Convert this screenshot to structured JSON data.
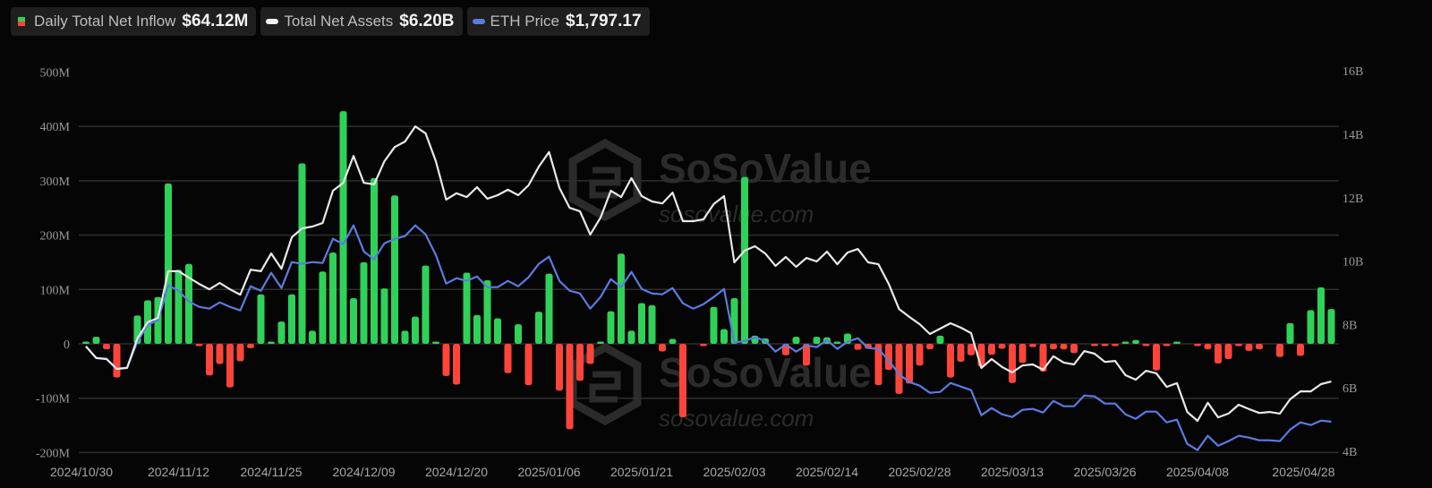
{
  "legend": [
    {
      "label": "Daily Total Net Inflow",
      "value": "$64.12M",
      "icon": "green-red-square"
    },
    {
      "label": "Total Net Assets",
      "value": "$6.20B",
      "icon": "white-line"
    },
    {
      "label": "ETH Price",
      "value": "$1,797.17",
      "icon": "blue-line"
    }
  ],
  "watermark": {
    "brand": "SoSoValue",
    "url": "sosovalue.com"
  },
  "colors": {
    "inflow_positive": "#30d158",
    "inflow_negative": "#ff453a",
    "net_assets": "#e9e9e9",
    "eth_price": "#5b7be2",
    "background": "#050505",
    "grid": "#333333"
  },
  "chart_data": {
    "type": "bar+line",
    "left_axis": {
      "ticks": [
        "500M",
        "400M",
        "300M",
        "200M",
        "100M",
        "0",
        "-100M",
        "-200M"
      ],
      "range_millions": [
        -200,
        500
      ]
    },
    "right_axis": {
      "ticks": [
        "16B",
        "14B",
        "12B",
        "10B",
        "8B",
        "6B",
        "4B"
      ],
      "range_billions": [
        4,
        16
      ]
    },
    "x_ticks": [
      "2024/10/30",
      "2024/11/12",
      "2024/11/25",
      "2024/12/09",
      "2024/12/20",
      "2025/01/06",
      "2025/01/21",
      "2025/02/03",
      "2025/02/14",
      "2025/02/28",
      "2025/03/13",
      "2025/03/26",
      "2025/04/08",
      "2025/04/28"
    ],
    "grid": true,
    "legend_position": "top-left",
    "x": [
      "2024/10/30",
      "2024/10/31",
      "2024/11/01",
      "2024/11/04",
      "2024/11/05",
      "2024/11/06",
      "2024/11/07",
      "2024/11/08",
      "2024/11/11",
      "2024/11/12",
      "2024/11/13",
      "2024/11/14",
      "2024/11/15",
      "2024/11/18",
      "2024/11/19",
      "2024/11/20",
      "2024/11/21",
      "2024/11/22",
      "2024/11/25",
      "2024/11/26",
      "2024/11/27",
      "2024/11/29",
      "2024/12/02",
      "2024/12/03",
      "2024/12/04",
      "2024/12/05",
      "2024/12/06",
      "2024/12/09",
      "2024/12/10",
      "2024/12/11",
      "2024/12/12",
      "2024/12/13",
      "2024/12/16",
      "2024/12/17",
      "2024/12/18",
      "2024/12/19",
      "2024/12/20",
      "2024/12/23",
      "2024/12/24",
      "2024/12/26",
      "2024/12/27",
      "2024/12/30",
      "2024/12/31",
      "2025/01/02",
      "2025/01/03",
      "2025/01/06",
      "2025/01/07",
      "2025/01/08",
      "2025/01/10",
      "2025/01/13",
      "2025/01/14",
      "2025/01/15",
      "2025/01/16",
      "2025/01/17",
      "2025/01/21",
      "2025/01/22",
      "2025/01/23",
      "2025/01/24",
      "2025/01/27",
      "2025/01/28",
      "2025/01/29",
      "2025/01/30",
      "2025/01/31",
      "2025/02/03",
      "2025/02/04",
      "2025/02/05",
      "2025/02/06",
      "2025/02/07",
      "2025/02/10",
      "2025/02/11",
      "2025/02/12",
      "2025/02/13",
      "2025/02/14",
      "2025/02/18",
      "2025/02/19",
      "2025/02/20",
      "2025/02/21",
      "2025/02/24",
      "2025/02/25",
      "2025/02/26",
      "2025/02/27",
      "2025/02/28",
      "2025/03/03",
      "2025/03/04",
      "2025/03/05",
      "2025/03/06",
      "2025/03/07",
      "2025/03/10",
      "2025/03/11",
      "2025/03/12",
      "2025/03/13",
      "2025/03/14",
      "2025/03/17",
      "2025/03/18",
      "2025/03/19",
      "2025/03/20",
      "2025/03/21",
      "2025/03/24",
      "2025/03/25",
      "2025/03/26",
      "2025/03/27",
      "2025/03/28",
      "2025/03/31",
      "2025/04/01",
      "2025/04/02",
      "2025/04/03",
      "2025/04/04",
      "2025/04/07",
      "2025/04/08",
      "2025/04/09",
      "2025/04/10",
      "2025/04/11",
      "2025/04/14",
      "2025/04/15",
      "2025/04/16",
      "2025/04/17",
      "2025/04/21",
      "2025/04/22",
      "2025/04/23",
      "2025/04/24",
      "2025/04/25",
      "2025/04/28"
    ],
    "series": [
      {
        "name": "Daily Total Net Inflow",
        "type": "bar",
        "unit": "M USD",
        "axis": "left",
        "values": [
          4,
          13,
          -10,
          -62,
          0,
          52,
          80,
          86,
          295,
          136,
          147,
          -2,
          -58,
          -37,
          -80,
          -32,
          -8,
          91,
          2,
          41,
          91,
          332,
          24,
          133,
          168,
          428,
          84,
          150,
          305,
          102,
          273,
          24,
          50,
          144,
          1,
          -59,
          -75,
          131,
          53,
          117,
          47,
          -54,
          36,
          -76,
          59,
          129,
          -86,
          -157,
          -68,
          -37,
          1,
          60,
          166,
          24,
          75,
          71,
          -14,
          9,
          -135,
          0,
          -3,
          68,
          27,
          84,
          307,
          15,
          10,
          0,
          -21,
          13,
          -40,
          13,
          12,
          4,
          19,
          -11,
          -9,
          -76,
          -48,
          -92,
          -73,
          -40,
          -10,
          15,
          -62,
          -33,
          -21,
          -42,
          -20,
          -9,
          -72,
          -35,
          -6,
          -51,
          -10,
          -10,
          -17,
          0,
          -2,
          -4,
          -3,
          4,
          7,
          -2,
          -49,
          -3,
          2,
          0,
          -3,
          -10,
          -36,
          -28,
          -4,
          -13,
          -10,
          0,
          -24,
          38,
          -22,
          62,
          104,
          64.12
        ]
      },
      {
        "name": "Total Net Assets",
        "type": "line",
        "unit": "B USD",
        "axis": "right",
        "values": [
          7.31,
          6.94,
          6.91,
          6.6,
          6.63,
          7.56,
          8.07,
          8.21,
          9.68,
          9.68,
          9.48,
          9.28,
          9.11,
          9.31,
          9.11,
          8.94,
          9.73,
          9.68,
          10.24,
          9.76,
          10.75,
          11.03,
          11.09,
          11.2,
          12.22,
          12.47,
          13.32,
          12.47,
          12.42,
          13.15,
          13.6,
          13.77,
          14.25,
          14.03,
          13.15,
          11.94,
          12.14,
          12.02,
          12.33,
          11.97,
          12.08,
          12.25,
          12.08,
          12.39,
          12.98,
          13.44,
          12.31,
          11.68,
          11.57,
          10.84,
          11.37,
          12.22,
          12.02,
          12.62,
          12.05,
          11.88,
          11.82,
          12.16,
          11.26,
          11.26,
          11.32,
          11.8,
          12.05,
          9.96,
          10.33,
          10.47,
          10.24,
          9.85,
          10.13,
          9.82,
          10.1,
          9.99,
          10.3,
          9.9,
          10.27,
          10.38,
          9.96,
          9.9,
          9.28,
          8.49,
          8.24,
          8.01,
          7.7,
          7.87,
          8.04,
          7.9,
          7.73,
          6.63,
          6.91,
          6.66,
          6.49,
          6.71,
          6.74,
          6.57,
          7.0,
          6.8,
          6.74,
          7.16,
          7.08,
          6.82,
          6.85,
          6.4,
          6.26,
          6.54,
          6.46,
          6.03,
          6.15,
          5.24,
          4.96,
          5.53,
          5.07,
          5.19,
          5.47,
          5.33,
          5.21,
          5.24,
          5.19,
          5.64,
          5.89,
          5.89,
          6.12,
          6.2
        ]
      },
      {
        "name": "ETH Price",
        "type": "line",
        "unit": "USD",
        "axis": "hidden",
        "values": [
          2640,
          2510,
          2500,
          2390,
          2400,
          2690,
          2880,
          2930,
          3320,
          3260,
          3140,
          3080,
          3060,
          3130,
          3080,
          3040,
          3310,
          3260,
          3460,
          3290,
          3580,
          3560,
          3580,
          3570,
          3840,
          3780,
          3990,
          3700,
          3610,
          3790,
          3840,
          3870,
          3990,
          3890,
          3660,
          3340,
          3400,
          3370,
          3420,
          3300,
          3300,
          3370,
          3310,
          3410,
          3560,
          3640,
          3370,
          3260,
          3230,
          3060,
          3190,
          3390,
          3300,
          3470,
          3280,
          3230,
          3220,
          3290,
          3120,
          3060,
          3110,
          3190,
          3280,
          2680,
          2700,
          2740,
          2700,
          2580,
          2660,
          2580,
          2650,
          2630,
          2710,
          2610,
          2690,
          2730,
          2620,
          2610,
          2480,
          2330,
          2240,
          2200,
          2120,
          2130,
          2230,
          2190,
          2150,
          1870,
          1950,
          1880,
          1850,
          1930,
          1940,
          1900,
          2030,
          1970,
          1970,
          2090,
          2080,
          2000,
          2000,
          1880,
          1830,
          1910,
          1910,
          1790,
          1820,
          1550,
          1480,
          1640,
          1530,
          1580,
          1640,
          1620,
          1590,
          1590,
          1580,
          1710,
          1790,
          1760,
          1810,
          1797.17
        ]
      }
    ]
  }
}
